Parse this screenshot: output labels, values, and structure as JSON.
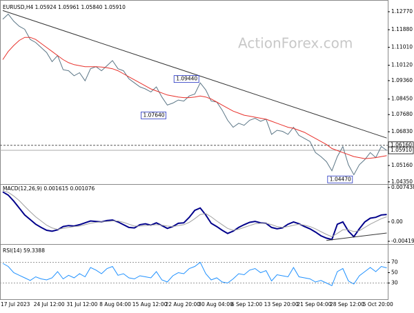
{
  "watermark": "ActionForex.com",
  "chart_data": [
    {
      "type": "line",
      "title": "EURUSD,H4  1.05924 1.05961 1.05840 1.05910",
      "ylim": [
        1.0424,
        1.1318
      ],
      "yticks": [
        {
          "value": 1.1277,
          "label": "1.12770"
        },
        {
          "value": 1.1188,
          "label": "1.11880"
        },
        {
          "value": 1.1101,
          "label": "1.11010"
        },
        {
          "value": 1.1012,
          "label": "1.10120"
        },
        {
          "value": 1.0936,
          "label": "1.09360"
        },
        {
          "value": 1.0845,
          "label": "1.08450"
        },
        {
          "value": 1.0768,
          "label": "1.07680"
        },
        {
          "value": 1.0683,
          "label": "1.06830"
        },
        {
          "value": 1.0516,
          "label": "1.05160"
        },
        {
          "value": 1.0435,
          "label": "1.04350"
        }
      ],
      "series": [
        {
          "color": "#5a7585",
          "values": [
            1.124,
            1.1265,
            1.123,
            1.1205,
            1.119,
            1.114,
            1.1125,
            1.11,
            1.1075,
            1.103,
            1.106,
            1.099,
            1.0985,
            1.096,
            1.0975,
            1.0935,
            1.0995,
            1.1005,
            1.0985,
            1.101,
            1.1035,
            1.0995,
            1.0985,
            1.0945,
            1.0925,
            1.0905,
            1.0895,
            1.088,
            1.0905,
            1.0855,
            1.0815,
            1.0825,
            1.084,
            1.0835,
            1.086,
            1.087,
            1.0925,
            1.089,
            1.0835,
            1.083,
            1.079,
            1.074,
            1.0705,
            1.0725,
            1.0715,
            1.074,
            1.075,
            1.0735,
            1.0745,
            1.067,
            1.069,
            1.0685,
            1.067,
            1.0705,
            1.0665,
            1.065,
            1.0635,
            1.058,
            1.056,
            1.0535,
            1.049,
            1.056,
            1.061,
            1.052,
            1.047,
            1.052,
            1.0545,
            1.058,
            1.0555,
            1.061,
            1.0591
          ]
        },
        {
          "color": "#e8302a",
          "values": [
            1.104,
            1.108,
            1.111,
            1.1135,
            1.115,
            1.115,
            1.114,
            1.112,
            1.11,
            1.108,
            1.106,
            1.104,
            1.1025,
            1.1015,
            1.101,
            1.1005,
            1.1005,
            1.1005,
            1.1003,
            1.1,
            1.0995,
            1.0985,
            1.097,
            1.0955,
            1.094,
            1.0925,
            1.091,
            1.0895,
            1.0885,
            1.0875,
            1.0865,
            1.086,
            1.0855,
            1.0852,
            1.0852,
            1.0855,
            1.086,
            1.0855,
            1.0845,
            1.083,
            1.0815,
            1.08,
            1.0785,
            1.0775,
            1.0765,
            1.076,
            1.0755,
            1.075,
            1.0745,
            1.0735,
            1.0725,
            1.0715,
            1.0705,
            1.07,
            1.069,
            1.068,
            1.0665,
            1.065,
            1.0635,
            1.062,
            1.06,
            1.059,
            1.058,
            1.057,
            1.056,
            1.0555,
            1.055,
            1.0552,
            1.0555,
            1.056,
            1.0565
          ]
        }
      ],
      "trendlines": [
        {
          "x": [
            0,
            70
          ],
          "y": [
            1.1283,
            1.0652
          ],
          "color": "#333333"
        }
      ],
      "annotations": [
        {
          "x": 36,
          "value": 1.0944,
          "label": "1.09440"
        },
        {
          "x": 30,
          "value": 1.0764,
          "label": "1.07640"
        },
        {
          "x": 64,
          "value": 1.0447,
          "label": "1.04470"
        }
      ],
      "price_lines": [
        {
          "value": 1.0616,
          "label": "1.06160",
          "dashed": true
        },
        {
          "value": 1.0591,
          "label": "1.05910",
          "dashed": false
        }
      ]
    },
    {
      "type": "line",
      "title": "MACD(12,26,9) 0.001615 0.001076",
      "ylim": [
        -0.00449,
        0.00803
      ],
      "yticks": [
        {
          "value": 0.007438,
          "label": "0.007438"
        },
        {
          "value": 0,
          "label": "0.00"
        },
        {
          "value": -0.00419,
          "label": "-0.00419"
        }
      ],
      "series": [
        {
          "color": "#00008b",
          "values": [
            0.0065,
            0.0058,
            0.0045,
            0.003,
            0.0015,
            0.0005,
            -0.0005,
            -0.0012,
            -0.0018,
            -0.002,
            -0.0017,
            -0.001,
            -0.0008,
            -0.0009,
            -0.0006,
            -0.0002,
            0.0002,
            0.0001,
            0.0,
            0.0003,
            0.0004,
            0.0,
            -0.0006,
            -0.0012,
            -0.0013,
            -0.0006,
            -0.0004,
            -0.0007,
            -0.0002,
            -0.0008,
            -0.0014,
            -0.001,
            -0.0003,
            -0.0002,
            0.001,
            0.0025,
            0.003,
            0.0015,
            -0.0003,
            -0.001,
            -0.0018,
            -0.0025,
            -0.002,
            -0.0012,
            -0.0006,
            -0.0001,
            0.0001,
            -0.0002,
            -0.0003,
            -0.0012,
            -0.0015,
            -0.0013,
            -0.0005,
            0.0,
            -0.0004,
            -0.001,
            -0.0015,
            -0.0022,
            -0.003,
            -0.0035,
            -0.0038,
            -0.0005,
            0.0,
            -0.002,
            -0.0032,
            -0.0015,
            0.0,
            0.0008,
            0.001,
            0.0015,
            0.0016
          ]
        },
        {
          "color": "#a0a0a0",
          "values": [
            0.0068,
            0.0064,
            0.0056,
            0.0046,
            0.0034,
            0.0022,
            0.0011,
            0.0002,
            -0.0007,
            -0.0013,
            -0.0016,
            -0.0014,
            -0.0012,
            -0.001,
            -0.0009,
            -0.0006,
            -0.0003,
            -0.0001,
            0.0,
            0.0001,
            0.0002,
            0.0002,
            -0.0001,
            -0.0005,
            -0.0009,
            -0.0009,
            -0.0008,
            -0.0007,
            -0.0006,
            -0.0007,
            -0.0009,
            -0.001,
            -0.0008,
            -0.0006,
            -0.0001,
            0.0007,
            0.0016,
            0.0018,
            0.0011,
            0.0002,
            -0.0006,
            -0.0014,
            -0.0018,
            -0.0016,
            -0.0012,
            -0.0008,
            -0.0004,
            -0.0003,
            -0.0003,
            -0.0006,
            -0.001,
            -0.0012,
            -0.001,
            -0.0007,
            -0.0005,
            -0.0007,
            -0.001,
            -0.0015,
            -0.0021,
            -0.0027,
            -0.0032,
            -0.0025,
            -0.0017,
            -0.0017,
            -0.0021,
            -0.0019,
            -0.0012,
            -0.0005,
            0.0001,
            0.0007,
            0.0011
          ]
        }
      ],
      "trendlines": [
        {
          "x": [
            59,
            70
          ],
          "y": [
            -0.004,
            -0.0024
          ],
          "color": "#333333"
        }
      ]
    },
    {
      "type": "line",
      "title": "RSI(14) 59.3388",
      "ylim": [
        0,
        100
      ],
      "yticks": [
        70,
        50,
        30
      ],
      "levels": [
        70,
        30
      ],
      "series": [
        {
          "color": "#1e90ff",
          "values": [
            68,
            62,
            50,
            45,
            40,
            35,
            42,
            38,
            36,
            40,
            52,
            38,
            45,
            40,
            48,
            42,
            60,
            55,
            48,
            58,
            62,
            45,
            48,
            40,
            38,
            44,
            42,
            40,
            52,
            36,
            32,
            44,
            50,
            48,
            58,
            62,
            70,
            48,
            36,
            40,
            32,
            30,
            38,
            48,
            46,
            55,
            58,
            50,
            54,
            34,
            46,
            44,
            42,
            60,
            42,
            40,
            38,
            32,
            35,
            30,
            25,
            52,
            58,
            34,
            28,
            44,
            52,
            60,
            52,
            62,
            59.3388
          ]
        }
      ],
      "categories": [
        "17 Jul 2023",
        null,
        null,
        null,
        null,
        null,
        "24 Jul 12:00",
        null,
        null,
        null,
        null,
        null,
        "31 Jul 12:00",
        null,
        null,
        null,
        null,
        null,
        "8 Aug 04:00",
        null,
        null,
        null,
        null,
        null,
        "15 Aug 12:00",
        null,
        null,
        null,
        null,
        null,
        "22 Aug 20:00",
        null,
        null,
        null,
        null,
        null,
        "30 Aug 04:00",
        null,
        null,
        null,
        null,
        null,
        "6 Sep 12:00",
        null,
        null,
        null,
        null,
        null,
        "13 Sep 20:00",
        null,
        null,
        null,
        null,
        null,
        "21 Sep 04:00",
        null,
        null,
        null,
        null,
        null,
        "28 Sep 12:00",
        null,
        null,
        null,
        null,
        null,
        "5 Oct 20:00",
        null,
        null,
        null,
        null
      ]
    }
  ]
}
